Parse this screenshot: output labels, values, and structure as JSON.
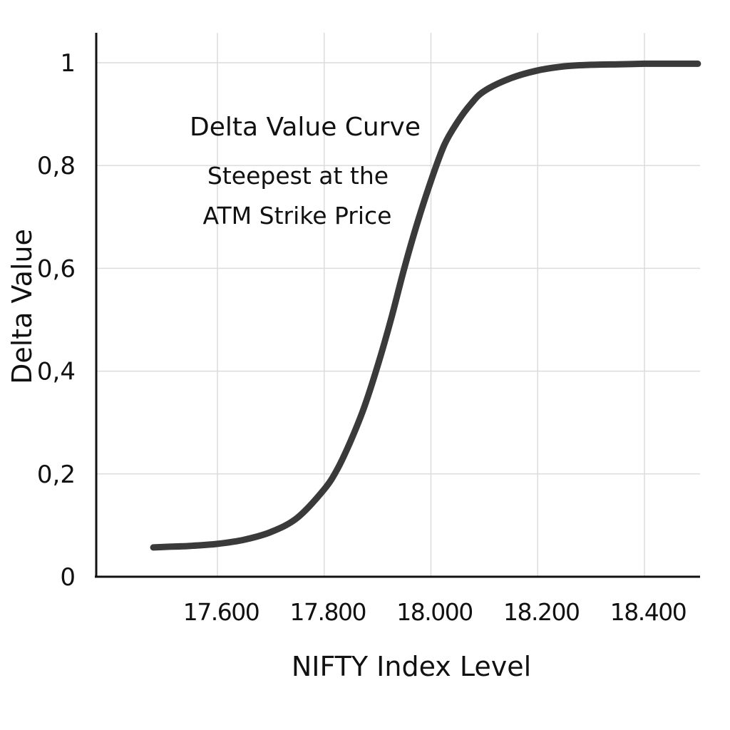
{
  "chart_data": {
    "type": "line",
    "title": "",
    "xlabel": "NIFTY Index Level",
    "ylabel": "Delta Value",
    "xlim": [
      17426,
      18500
    ],
    "ylim": [
      0,
      1
    ],
    "x_ticks": [
      17600,
      17800,
      18000,
      18200,
      18400
    ],
    "x_tick_labels": [
      "17.600",
      "17.800",
      "18.000",
      "18.200",
      "18.400"
    ],
    "y_ticks": [
      0,
      0.2,
      0.4,
      0.6,
      0.8,
      1
    ],
    "y_tick_labels": [
      "0",
      "0,2",
      "0,4",
      "0,6",
      "0,8",
      "1"
    ],
    "grid": true,
    "line_color": "#3a3a3a",
    "series": [
      {
        "x": [
          17480,
          17500,
          17550,
          17600,
          17650,
          17700,
          17750,
          17800,
          17825,
          17850,
          17875,
          17900,
          17925,
          17950,
          17975,
          18000,
          18025,
          18050,
          18075,
          18100,
          18150,
          18200,
          18250,
          18300,
          18350,
          18400,
          18450,
          18500
        ],
        "y": [
          0.057,
          0.058,
          0.06,
          0.064,
          0.072,
          0.087,
          0.115,
          0.17,
          0.21,
          0.265,
          0.33,
          0.41,
          0.5,
          0.6,
          0.69,
          0.77,
          0.84,
          0.885,
          0.92,
          0.945,
          0.97,
          0.985,
          0.993,
          0.996,
          0.997,
          0.998,
          0.998,
          0.998
        ]
      }
    ],
    "annotations": {
      "title": "Delta Value Curve",
      "line1": "Steepest at the",
      "line2": "ATM Strike Price"
    }
  }
}
